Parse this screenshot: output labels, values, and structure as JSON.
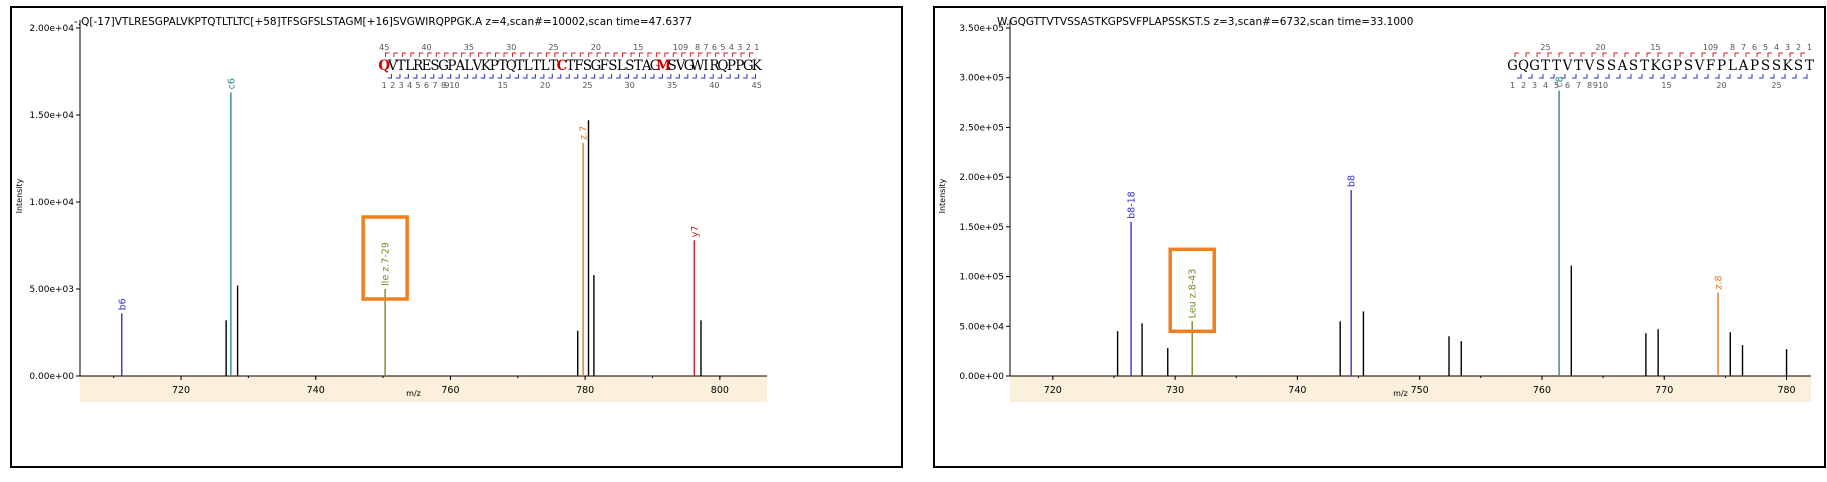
{
  "chart_data": [
    {
      "type": "bar",
      "title": "-.Q[-17]VTLRESGPALVKPTQTLTLTC[+58]TFSGFSLSTAGM[+16]SVGWIRQPPGK.A z=4,scan#=10002,scan time=47.6377",
      "xlabel": "m/z",
      "ylabel": "Intensity",
      "xlim": [
        705,
        807
      ],
      "ylim": [
        0,
        20000
      ],
      "xticks": [
        720,
        740,
        760,
        780,
        800
      ],
      "xtick_labels": [
        "720",
        "740",
        "760",
        "780",
        "800"
      ],
      "yticks": [
        0,
        5000,
        10000,
        15000,
        20000
      ],
      "ytick_labels": [
        "0.00e+00",
        "5.00e+03",
        "1.00e+04",
        "1.50e+04",
        "2.00e+04"
      ],
      "peaks": [
        {
          "x": 711.2,
          "y": 3600,
          "label": "b6",
          "color": "#3333cc"
        },
        {
          "x": 726.7,
          "y": 3200,
          "label": "",
          "color": "#000000"
        },
        {
          "x": 727.4,
          "y": 16300,
          "label": "c6",
          "color": "#2e8b8b"
        },
        {
          "x": 728.4,
          "y": 5200,
          "label": "",
          "color": "#000000"
        },
        {
          "x": 750.3,
          "y": 5000,
          "label": "Ile z.7-29",
          "color": "#6b8e23"
        },
        {
          "x": 778.9,
          "y": 2600,
          "label": "",
          "color": "#000000"
        },
        {
          "x": 779.7,
          "y": 13400,
          "label": "z.7",
          "color": "#e07a1f"
        },
        {
          "x": 780.5,
          "y": 14700,
          "label": "",
          "color": "#000000"
        },
        {
          "x": 781.3,
          "y": 5800,
          "label": "",
          "color": "#000000"
        },
        {
          "x": 796.2,
          "y": 7800,
          "label": "y7",
          "color": "#cc2222"
        },
        {
          "x": 797.2,
          "y": 3200,
          "label": "",
          "color": "#000000"
        }
      ],
      "highlight_box_peak": "Ile z.7-29",
      "sequence": {
        "letters": [
          "Q",
          "V",
          "T",
          "L",
          "R",
          "E",
          "S",
          "G",
          "P",
          "A",
          "L",
          "V",
          "K",
          "P",
          "T",
          "Q",
          "T",
          "L",
          "T",
          "L",
          "T",
          "C",
          "T",
          "F",
          "S",
          "G",
          "F",
          "S",
          "L",
          "S",
          "T",
          "A",
          "G",
          "M",
          "S",
          "V",
          "G",
          "W",
          "I",
          "R",
          "Q",
          "P",
          "P",
          "G",
          "K"
        ],
        "modified": [
          0,
          21,
          33
        ],
        "top_labels": [
          {
            "pos": 0,
            "text": "45"
          },
          {
            "pos": 5,
            "text": "40"
          },
          {
            "pos": 10,
            "text": "35"
          },
          {
            "pos": 15,
            "text": "30"
          },
          {
            "pos": 20,
            "text": "25"
          },
          {
            "pos": 25,
            "text": "20"
          },
          {
            "pos": 30,
            "text": "15"
          },
          {
            "pos": 35,
            "text": "109"
          },
          {
            "pos": 37,
            "text": "8"
          },
          {
            "pos": 38,
            "text": "7"
          },
          {
            "pos": 39,
            "text": "6"
          },
          {
            "pos": 40,
            "text": "5"
          },
          {
            "pos": 41,
            "text": "4"
          },
          {
            "pos": 42,
            "text": "3"
          },
          {
            "pos": 43,
            "text": "2"
          },
          {
            "pos": 44,
            "text": "1"
          }
        ],
        "bottom_labels": [
          {
            "pos": 0,
            "text": "1"
          },
          {
            "pos": 1,
            "text": "2"
          },
          {
            "pos": 2,
            "text": "3"
          },
          {
            "pos": 3,
            "text": "4"
          },
          {
            "pos": 4,
            "text": "5"
          },
          {
            "pos": 5,
            "text": "6"
          },
          {
            "pos": 6,
            "text": "7"
          },
          {
            "pos": 7,
            "text": "8"
          },
          {
            "pos": 8,
            "text": "910"
          },
          {
            "pos": 14,
            "text": "15"
          },
          {
            "pos": 19,
            "text": "20"
          },
          {
            "pos": 24,
            "text": "25"
          },
          {
            "pos": 29,
            "text": "30"
          },
          {
            "pos": 34,
            "text": "35"
          },
          {
            "pos": 39,
            "text": "40"
          },
          {
            "pos": 44,
            "text": "45"
          }
        ]
      }
    },
    {
      "type": "bar",
      "title": "W.GQGTTVTVSSASTKGPSVFPLAPSSKST.S z=3,scan#=6732,scan time=33.1000",
      "xlabel": "m/z",
      "ylabel": "Intensity",
      "xlim": [
        716.5,
        782
      ],
      "ylim": [
        0,
        350000
      ],
      "xticks": [
        720,
        730,
        740,
        750,
        760,
        770,
        780
      ],
      "xtick_labels": [
        "720",
        "730",
        "740",
        "750",
        "760",
        "770",
        "780"
      ],
      "yticks": [
        0,
        50000,
        100000,
        150000,
        200000,
        250000,
        300000,
        350000
      ],
      "ytick_labels": [
        "0.00e+00",
        "5.00e+04",
        "1.00e+05",
        "1.50e+05",
        "2.00e+05",
        "2.50e+05",
        "3.00e+05",
        "3.50e+05"
      ],
      "peaks": [
        {
          "x": 725.3,
          "y": 45000,
          "label": "",
          "color": "#000000"
        },
        {
          "x": 726.4,
          "y": 155000,
          "label": "b8-18",
          "color": "#3333cc"
        },
        {
          "x": 727.3,
          "y": 53000,
          "label": "",
          "color": "#000000"
        },
        {
          "x": 729.4,
          "y": 28000,
          "label": "",
          "color": "#000000"
        },
        {
          "x": 731.4,
          "y": 55000,
          "label": "Leu z.8-43",
          "color": "#6b8e23"
        },
        {
          "x": 743.5,
          "y": 55000,
          "label": "",
          "color": "#000000"
        },
        {
          "x": 744.4,
          "y": 187000,
          "label": "b8",
          "color": "#3333cc"
        },
        {
          "x": 745.4,
          "y": 65000,
          "label": "",
          "color": "#000000"
        },
        {
          "x": 752.4,
          "y": 40000,
          "label": "",
          "color": "#000000"
        },
        {
          "x": 753.4,
          "y": 35000,
          "label": "",
          "color": "#000000"
        },
        {
          "x": 761.4,
          "y": 287000,
          "label": "c8",
          "color": "#2e8b8b"
        },
        {
          "x": 762.4,
          "y": 111000,
          "label": "",
          "color": "#000000"
        },
        {
          "x": 768.5,
          "y": 43000,
          "label": "",
          "color": "#000000"
        },
        {
          "x": 769.5,
          "y": 47000,
          "label": "",
          "color": "#000000"
        },
        {
          "x": 774.4,
          "y": 84000,
          "label": "z.8",
          "color": "#e07a1f"
        },
        {
          "x": 775.4,
          "y": 44000,
          "label": "",
          "color": "#000000"
        },
        {
          "x": 776.4,
          "y": 31000,
          "label": "",
          "color": "#000000"
        },
        {
          "x": 780.0,
          "y": 27000,
          "label": "",
          "color": "#000000"
        }
      ],
      "highlight_box_peak": "Leu z.8-43",
      "sequence": {
        "letters": [
          "G",
          "Q",
          "G",
          "T",
          "T",
          "V",
          "T",
          "V",
          "S",
          "S",
          "A",
          "S",
          "T",
          "K",
          "G",
          "P",
          "S",
          "V",
          "F",
          "P",
          "L",
          "A",
          "P",
          "S",
          "S",
          "K",
          "S",
          "T"
        ],
        "modified": [],
        "top_labels": [
          {
            "pos": 3,
            "text": "25"
          },
          {
            "pos": 8,
            "text": "20"
          },
          {
            "pos": 13,
            "text": "15"
          },
          {
            "pos": 18,
            "text": "109"
          },
          {
            "pos": 20,
            "text": "8"
          },
          {
            "pos": 21,
            "text": "7"
          },
          {
            "pos": 22,
            "text": "6"
          },
          {
            "pos": 23,
            "text": "5"
          },
          {
            "pos": 24,
            "text": "4"
          },
          {
            "pos": 25,
            "text": "3"
          },
          {
            "pos": 26,
            "text": "2"
          },
          {
            "pos": 27,
            "text": "1"
          }
        ],
        "bottom_labels": [
          {
            "pos": 0,
            "text": "1"
          },
          {
            "pos": 1,
            "text": "2"
          },
          {
            "pos": 2,
            "text": "3"
          },
          {
            "pos": 3,
            "text": "4"
          },
          {
            "pos": 4,
            "text": "5"
          },
          {
            "pos": 5,
            "text": "6"
          },
          {
            "pos": 6,
            "text": "7"
          },
          {
            "pos": 7,
            "text": "8"
          },
          {
            "pos": 8,
            "text": "910"
          },
          {
            "pos": 14,
            "text": "15"
          },
          {
            "pos": 19,
            "text": "20"
          },
          {
            "pos": 24,
            "text": "25"
          }
        ]
      }
    }
  ],
  "colors": {
    "axis_band": "#fbf0dc",
    "highlight_box": "#f07f1e",
    "sequence_modified": "#cc0000",
    "c_bracket": "#cc2222",
    "n_bracket": "#2233cc"
  }
}
